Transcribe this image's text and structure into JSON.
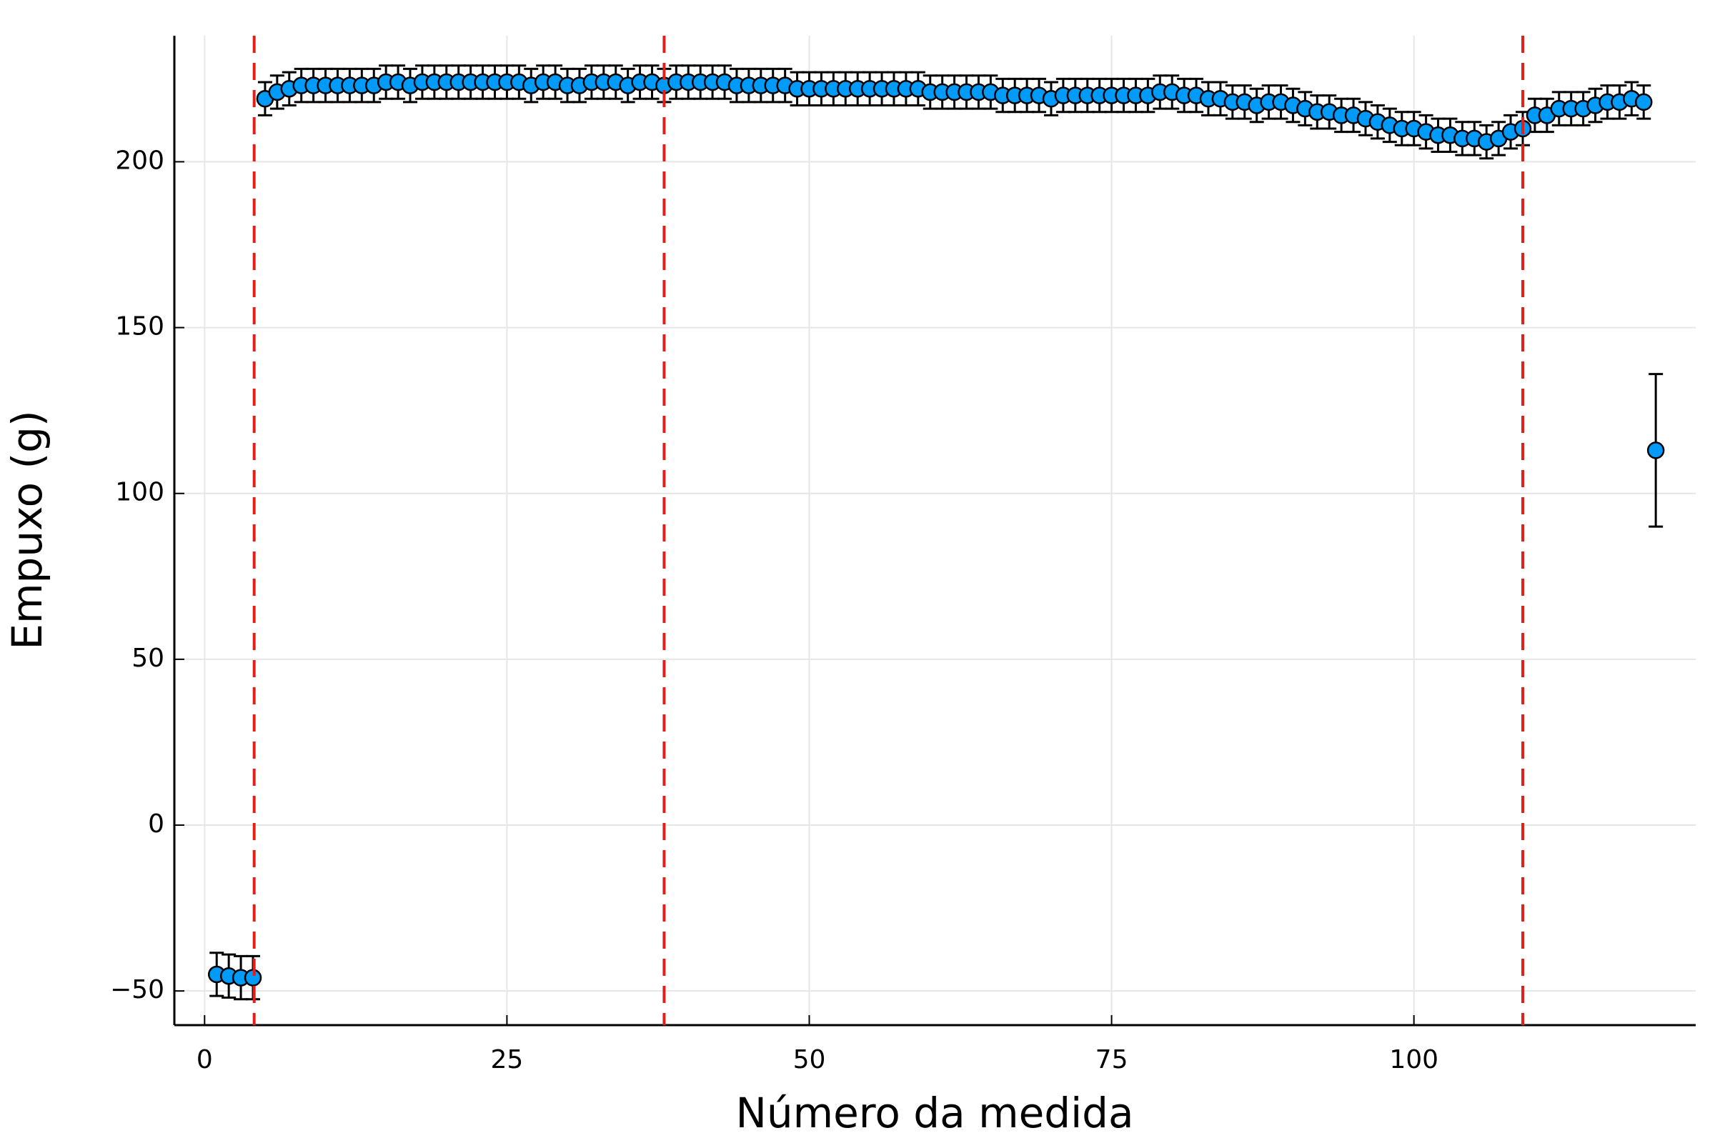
{
  "chart_data": {
    "type": "scatter",
    "xlabel": "Número da medida",
    "ylabel": "Empuxo (g)",
    "xlim": [
      -2.5,
      123.3
    ],
    "ylim": [
      -60.3,
      238
    ],
    "xticks": [
      0,
      25,
      50,
      75,
      100
    ],
    "yticks": [
      {
        "value": -50,
        "label": "−50"
      },
      0,
      50,
      100,
      150,
      200
    ],
    "grid": true,
    "color": "#009af9",
    "error_color": "#000000",
    "vlines": {
      "color": "#e0201b",
      "x": [
        4.1,
        38,
        109
      ]
    },
    "x": [
      1,
      2,
      3,
      4,
      5,
      6,
      7,
      8,
      9,
      10,
      11,
      12,
      13,
      14,
      15,
      16,
      17,
      18,
      19,
      20,
      21,
      22,
      23,
      24,
      25,
      26,
      27,
      28,
      29,
      30,
      31,
      32,
      33,
      34,
      35,
      36,
      37,
      38,
      39,
      40,
      41,
      42,
      43,
      44,
      45,
      46,
      47,
      48,
      49,
      50,
      51,
      52,
      53,
      54,
      55,
      56,
      57,
      58,
      59,
      60,
      61,
      62,
      63,
      64,
      65,
      66,
      67,
      68,
      69,
      70,
      71,
      72,
      73,
      74,
      75,
      76,
      77,
      78,
      79,
      80,
      81,
      82,
      83,
      84,
      85,
      86,
      87,
      88,
      89,
      90,
      91,
      92,
      93,
      94,
      95,
      96,
      97,
      98,
      99,
      100,
      101,
      102,
      103,
      104,
      105,
      106,
      107,
      108,
      109,
      110,
      111,
      112,
      113,
      114,
      115,
      116,
      117,
      118,
      119,
      120
    ],
    "values": [
      -45,
      -45.5,
      -46,
      -46,
      219,
      221,
      222,
      223,
      223,
      223,
      223,
      223,
      223,
      223,
      224,
      224,
      223,
      224,
      224,
      224,
      224,
      224,
      224,
      224,
      224,
      224,
      223,
      224,
      224,
      223,
      223,
      224,
      224,
      224,
      223,
      224,
      224,
      223,
      224,
      224,
      224,
      224,
      224,
      223,
      223,
      223,
      223,
      223,
      222,
      222,
      222,
      222,
      222,
      222,
      222,
      222,
      222,
      222,
      222,
      221,
      221,
      221,
      221,
      221,
      221,
      220,
      220,
      220,
      220,
      219,
      220,
      220,
      220,
      220,
      220,
      220,
      220,
      220,
      221,
      221,
      220,
      220,
      219,
      219,
      218,
      218,
      217,
      218,
      218,
      217,
      216,
      215,
      215,
      214,
      214,
      213,
      212,
      211,
      210,
      210,
      209,
      208,
      208,
      207,
      207,
      206,
      207,
      209,
      210,
      214,
      214,
      216,
      216,
      216,
      217,
      218,
      218,
      219,
      218,
      113
    ],
    "errors": [
      6.5,
      6.5,
      6.5,
      6.5,
      5,
      5,
      5,
      5,
      5,
      5,
      5,
      5,
      5,
      5,
      5,
      5,
      5,
      5,
      5,
      5,
      5,
      5,
      5,
      5,
      5,
      5,
      5,
      5,
      5,
      5,
      5,
      5,
      5,
      5,
      5,
      5,
      5,
      5,
      5,
      5,
      5,
      5,
      5,
      5,
      5,
      5,
      5,
      5,
      5,
      5,
      5,
      5,
      5,
      5,
      5,
      5,
      5,
      5,
      5,
      5,
      5,
      5,
      5,
      5,
      5,
      5,
      5,
      5,
      5,
      5,
      5,
      5,
      5,
      5,
      5,
      5,
      5,
      5,
      5,
      5,
      5,
      5,
      5,
      5,
      5,
      5,
      5,
      5,
      5,
      5,
      5,
      5,
      5,
      5,
      5,
      5,
      5,
      5,
      5,
      5,
      5,
      5,
      5,
      5,
      5,
      5,
      5,
      5,
      5,
      5,
      5,
      5,
      5,
      5,
      5,
      5,
      5,
      5,
      5,
      23
    ]
  }
}
